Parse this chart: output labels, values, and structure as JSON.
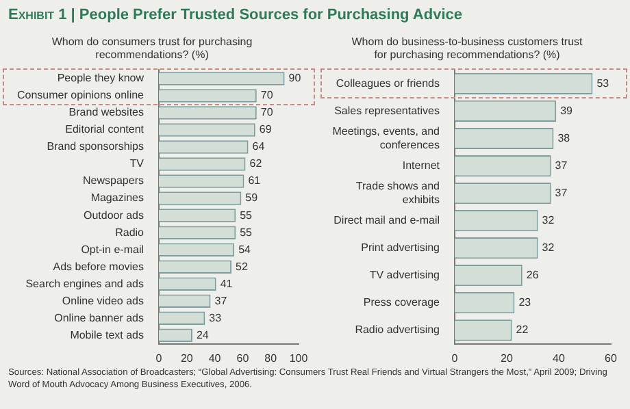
{
  "chart_data": [
    {
      "type": "bar",
      "orientation": "horizontal",
      "title": "Exhibit 1 | People Prefer Trusted Sources for Purchasing Advice",
      "subtitle": "Whom do consumers trust for purchasing recommendations? (%)",
      "categories": [
        "People they know",
        "Consumer opinions online",
        "Brand websites",
        "Editorial content",
        "Brand sponsorships",
        "TV",
        "Newspapers",
        "Magazines",
        "Outdoor ads",
        "Radio",
        "Opt-in e-mail",
        "Ads before movies",
        "Search engines and ads",
        "Online video ads",
        "Online banner ads",
        "Mobile text ads"
      ],
      "values": [
        90,
        70,
        70,
        69,
        64,
        62,
        61,
        59,
        55,
        55,
        54,
        52,
        41,
        37,
        33,
        24
      ],
      "color": "#d3dfd6",
      "xlim": [
        0,
        100
      ],
      "xticks": [
        0,
        20,
        40,
        60,
        80,
        100
      ],
      "data_labels": true,
      "annotations": [
        "Sources: National Association of Broadcasters; “Global Advertising: Consumers Trust Real Friends and Virtual Strangers the Most,” April 2009; Driving Word of Mouth Advocacy Among Business Executives, 2006."
      ]
    },
    {
      "type": "bar",
      "orientation": "horizontal",
      "subtitle": "Whom do business-to-business customers trust for purchasing recommendations? (%)",
      "categories": [
        "Colleagues or friends",
        "Sales representatives",
        "Meetings, events, and conferences",
        "Internet",
        "Trade shows and exhibits",
        "Direct mail and e-mail",
        "Print advertising",
        "TV advertising",
        "Press coverage",
        "Radio advertising"
      ],
      "values": [
        53,
        39,
        38,
        37,
        37,
        32,
        32,
        26,
        23,
        22
      ],
      "color": "#d3dfd6",
      "xlim": [
        0,
        60
      ],
      "xticks": [
        0,
        20,
        40,
        60
      ],
      "data_labels": true
    }
  ]
}
